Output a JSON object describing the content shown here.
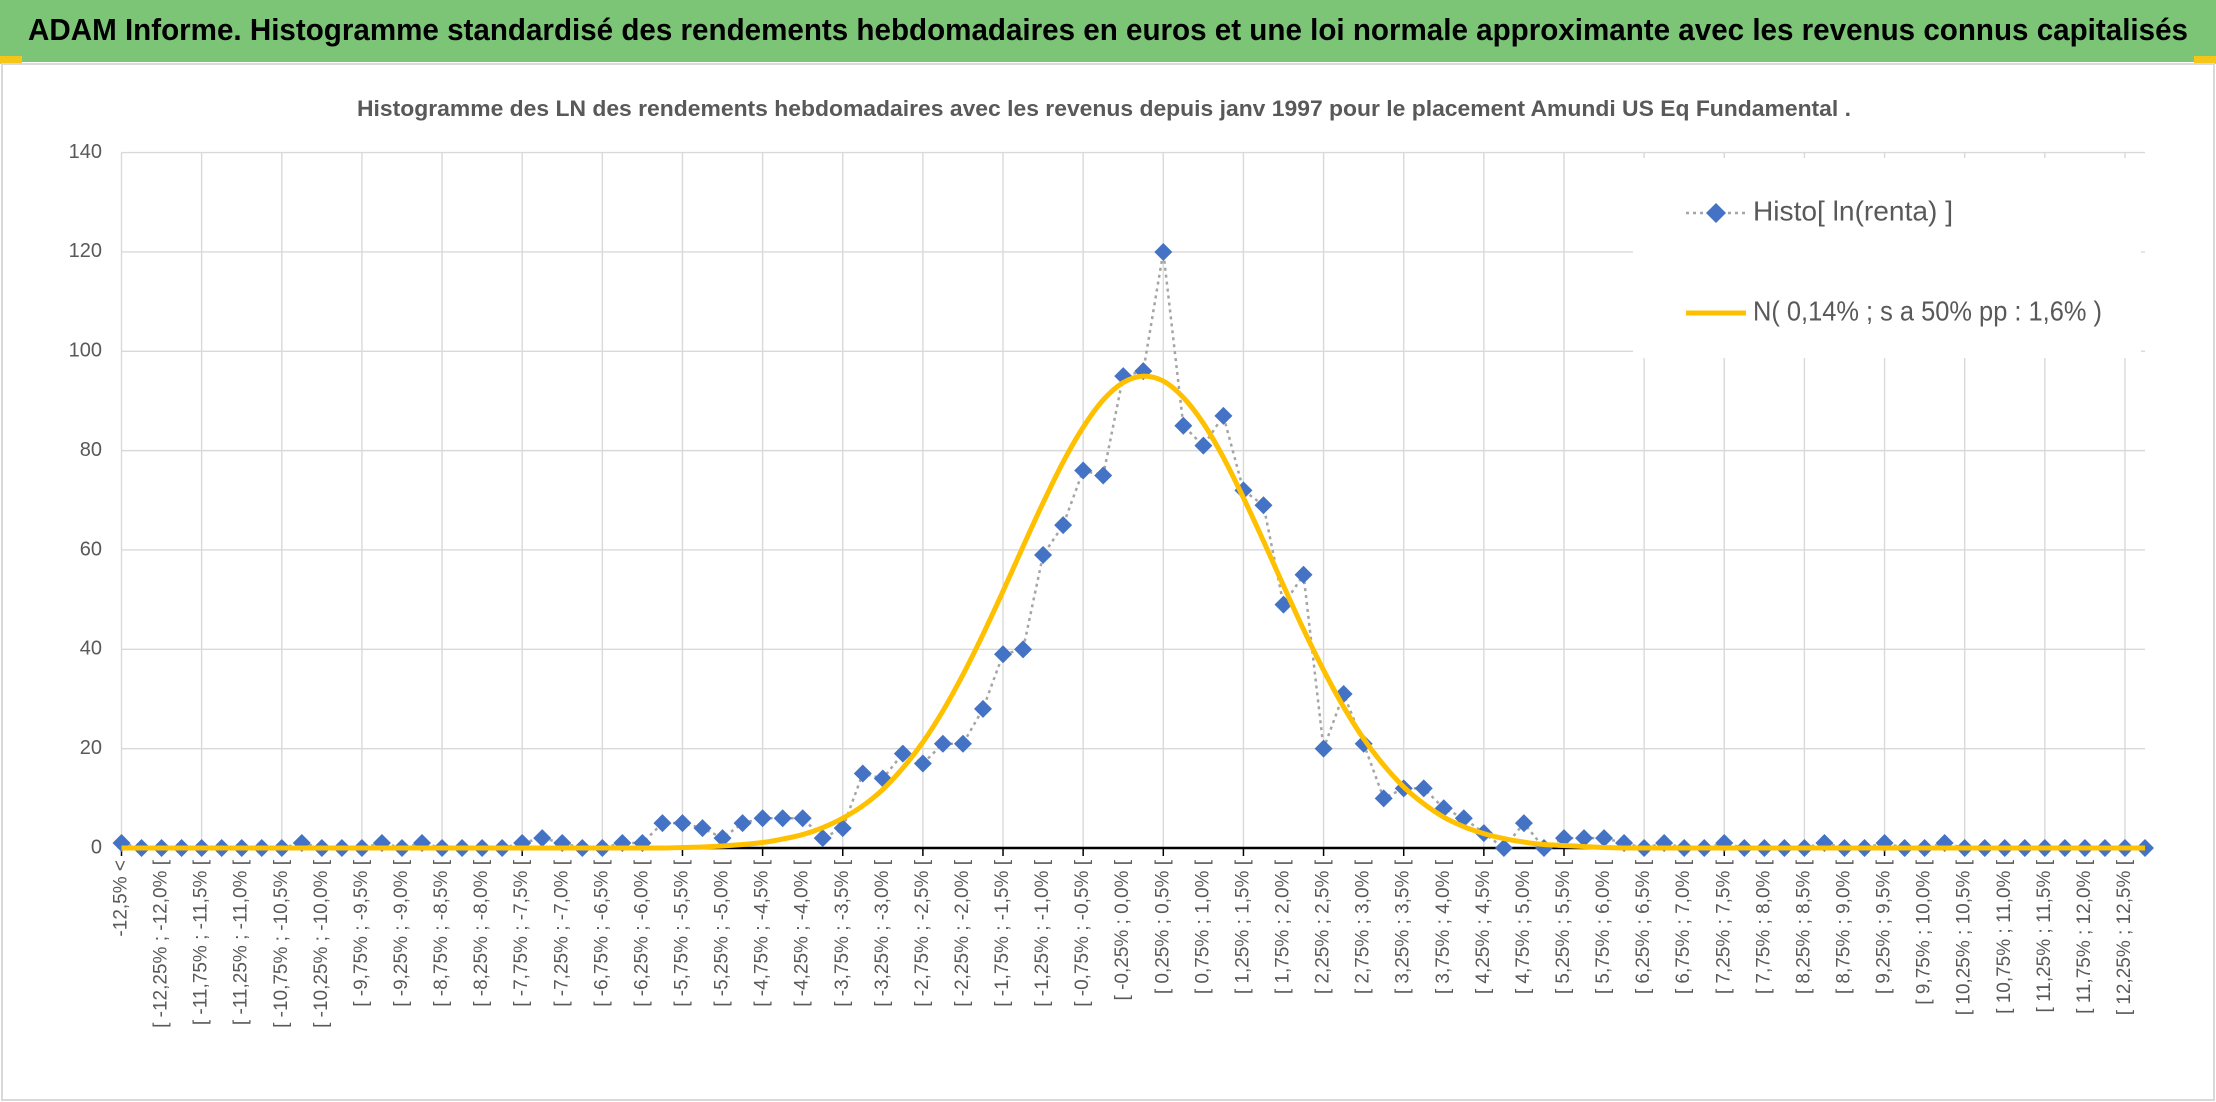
{
  "chart_data": {
    "type": "line",
    "title": "ADAM Informe. Histogramme standardisé des rendements hebdomadaires en euros et une loi normale approximante avec les revenus connus capitalisés",
    "subtitle": "Histogramme des LN des rendements hebdomadaires avec les revenus depuis janv 1997 pour le placement Amundi US Eq Fundamental .",
    "categories": [
      "-12,5% <",
      null,
      "[ -12,25% ; -12,0% [",
      null,
      "[ -11,75% ; -11,5% [",
      null,
      "[ -11,25% ; -11,0% [",
      null,
      "[ -10,75% ; -10,5% [",
      null,
      "[ -10,25% ; -10,0% [",
      null,
      "[ -9,75% ; -9,5% [",
      null,
      "[ -9,25% ; -9,0% [",
      null,
      "[ -8,75% ; -8,5% [",
      null,
      "[ -8,25% ; -8,0% [",
      null,
      "[ -7,75% ; -7,5% [",
      null,
      "[ -7,25% ; -7,0% [",
      null,
      "[ -6,75% ; -6,5% [",
      null,
      "[ -6,25% ; -6,0% [",
      null,
      "[ -5,75% ; -5,5% [",
      null,
      "[ -5,25% ; -5,0% [",
      null,
      "[ -4,75% ; -4,5% [",
      null,
      "[ -4,25% ; -4,0% [",
      null,
      "[ -3,75% ; -3,5% [",
      null,
      "[ -3,25% ; -3,0% [",
      null,
      "[ -2,75% ; -2,5% [",
      null,
      "[ -2,25% ; -2,0% [",
      null,
      "[ -1,75% ; -1,5% [",
      null,
      "[ -1,25% ; -1,0% [",
      null,
      "[ -0,75% ; -0,5% [",
      null,
      "[ -0,25% ; 0,0% [",
      null,
      "[ 0,25% ; 0,5% [",
      null,
      "[ 0,75% ; 1,0% [",
      null,
      "[ 1,25% ; 1,5% [",
      null,
      "[ 1,75% ; 2,0% [",
      null,
      "[ 2,25% ; 2,5% [",
      null,
      "[ 2,75% ; 3,0% [",
      null,
      "[ 3,25% ; 3,5% [",
      null,
      "[ 3,75% ; 4,0% [",
      null,
      "[ 4,25% ; 4,5% [",
      null,
      "[ 4,75% ; 5,0% [",
      null,
      "[ 5,25% ; 5,5% [",
      null,
      "[ 5,75% ; 6,0% [",
      null,
      "[ 6,25% ; 6,5% [",
      null,
      "[ 6,75% ; 7,0% [",
      null,
      "[ 7,25% ; 7,5% [",
      null,
      "[ 7,75% ; 8,0% [",
      null,
      "[ 8,25% ; 8,5% [",
      null,
      "[ 8,75% ; 9,0% [",
      null,
      "[ 9,25% ; 9,5% [",
      null,
      "[ 9,75% ; 10,0% [",
      null,
      "[ 10,25% ; 10,5% [",
      null,
      "[ 10,75% ; 11,0% [",
      null,
      "[ 11,25% ; 11,5% [",
      null,
      "[ 11,75% ; 12,0% [",
      null,
      "[ 12,25% ; 12,5% [",
      null
    ],
    "series": [
      {
        "name": "Histo[ ln(renta) ]",
        "color": "#4472c4",
        "line_color": "#a5a5a5",
        "marker": "diamond",
        "line_style": "dotted",
        "values": [
          1,
          0,
          0,
          0,
          0,
          0,
          0,
          0,
          0,
          1,
          0,
          0,
          0,
          1,
          0,
          1,
          0,
          0,
          0,
          0,
          1,
          2,
          1,
          0,
          0,
          1,
          1,
          5,
          5,
          4,
          2,
          5,
          6,
          6,
          6,
          2,
          4,
          15,
          14,
          19,
          17,
          21,
          21,
          28,
          39,
          40,
          59,
          65,
          76,
          75,
          95,
          96,
          120,
          85,
          81,
          87,
          72,
          69,
          49,
          55,
          20,
          31,
          21,
          10,
          12,
          12,
          8,
          6,
          3,
          0,
          5,
          0,
          2,
          2,
          2,
          1,
          0,
          1,
          0,
          0,
          1,
          0,
          0,
          0,
          0,
          1,
          0,
          0,
          1,
          0,
          0,
          1,
          0,
          0,
          0,
          0,
          0,
          0,
          0,
          0,
          0,
          0
        ]
      },
      {
        "name": "N( 0,14% ; s a 50% pp : 1,6% )",
        "color": "#ffc000",
        "line_style": "solid",
        "smooth": true,
        "values": [
          0,
          0,
          0,
          0,
          0,
          0,
          0,
          0,
          0,
          0,
          0,
          0,
          0,
          0,
          0,
          0,
          0,
          0,
          0,
          0,
          0,
          0,
          0,
          0,
          0,
          0,
          0,
          0,
          0.1,
          0.2,
          0.4,
          0.7,
          1.1,
          1.8,
          2.7,
          4.1,
          6.0,
          8.5,
          11.8,
          16.1,
          21.3,
          27.6,
          34.9,
          43.0,
          51.7,
          60.7,
          69.5,
          77.7,
          84.7,
          90.2,
          93.7,
          95.0,
          94.0,
          90.7,
          85.5,
          78.6,
          70.5,
          61.8,
          52.8,
          44.0,
          35.8,
          28.4,
          22.0,
          16.7,
          12.3,
          8.9,
          6.2,
          4.3,
          2.9,
          1.9,
          1.2,
          0.7,
          0.5,
          0.3,
          0.1,
          0,
          0,
          0,
          0,
          0,
          0,
          0,
          0,
          0,
          0,
          0,
          0,
          0,
          0,
          0,
          0,
          0,
          0,
          0,
          0,
          0,
          0,
          0,
          0,
          0,
          0,
          0
        ]
      }
    ],
    "ylim": [
      0,
      140
    ],
    "yticks": [
      0,
      20,
      40,
      60,
      80,
      100,
      120,
      140
    ],
    "grid": true,
    "legend": "top-right"
  }
}
